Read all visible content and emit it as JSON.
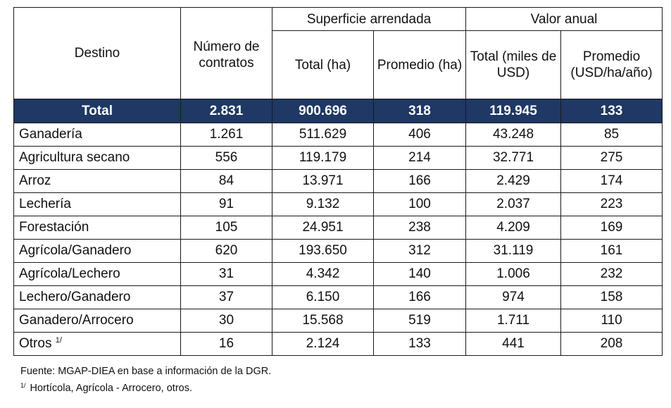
{
  "headers": {
    "destino": "Destino",
    "contratos": "Número de contratos",
    "superficie_group": "Superficie arrendada",
    "valor_group": "Valor anual",
    "sup_total": "Total (ha)",
    "sup_promedio": "Promedio (ha)",
    "val_total": "Total (miles de USD)",
    "val_promedio": "Promedio (USD/ha/año)"
  },
  "total_row": {
    "label": "Total",
    "contratos": "2.831",
    "sup_total": "900.696",
    "sup_promedio": "318",
    "val_total": "119.945",
    "val_promedio": "133"
  },
  "rows": [
    {
      "label": "Ganadería",
      "contratos": "1.261",
      "sup_total": "511.629",
      "sup_promedio": "406",
      "val_total": "43.248",
      "val_promedio": "85"
    },
    {
      "label": "Agricultura secano",
      "contratos": "556",
      "sup_total": "119.179",
      "sup_promedio": "214",
      "val_total": "32.771",
      "val_promedio": "275"
    },
    {
      "label": "Arroz",
      "contratos": "84",
      "sup_total": "13.971",
      "sup_promedio": "166",
      "val_total": "2.429",
      "val_promedio": "174"
    },
    {
      "label": "Lechería",
      "contratos": "91",
      "sup_total": "9.132",
      "sup_promedio": "100",
      "val_total": "2.037",
      "val_promedio": "223"
    },
    {
      "label": "Forestación",
      "contratos": "105",
      "sup_total": "24.951",
      "sup_promedio": "238",
      "val_total": "4.209",
      "val_promedio": "169"
    },
    {
      "label": "Agrícola/Ganadero",
      "contratos": "620",
      "sup_total": "193.650",
      "sup_promedio": "312",
      "val_total": "31.119",
      "val_promedio": "161"
    },
    {
      "label": "Agrícola/Lechero",
      "contratos": "31",
      "sup_total": "4.342",
      "sup_promedio": "140",
      "val_total": "1.006",
      "val_promedio": "232"
    },
    {
      "label": "Lechero/Ganadero",
      "contratos": "37",
      "sup_total": "6.150",
      "sup_promedio": "166",
      "val_total": "974",
      "val_promedio": "158"
    },
    {
      "label": "Ganadero/Arrocero",
      "contratos": "30",
      "sup_total": "15.568",
      "sup_promedio": "519",
      "val_total": "1.711",
      "val_promedio": "110"
    },
    {
      "label": "Otros",
      "label_sup": "1/",
      "contratos": "16",
      "sup_total": "2.124",
      "sup_promedio": "133",
      "val_total": "441",
      "val_promedio": "208"
    }
  ],
  "notes": {
    "source": "Fuente: MGAP-DIEA en base a información de la DGR.",
    "footnote_marker": "1/",
    "footnote": "Hortícola, Agrícola - Arrocero, otros."
  },
  "colors": {
    "total_row_bg": "#1f3864",
    "total_row_text": "#ffffff"
  }
}
